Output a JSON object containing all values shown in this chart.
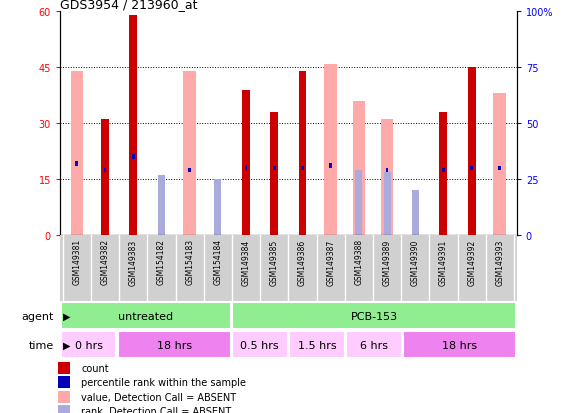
{
  "title": "GDS3954 / 213960_at",
  "samples": [
    "GSM149381",
    "GSM149382",
    "GSM149383",
    "GSM154182",
    "GSM154183",
    "GSM154184",
    "GSM149384",
    "GSM149385",
    "GSM149386",
    "GSM149387",
    "GSM149388",
    "GSM149389",
    "GSM149390",
    "GSM149391",
    "GSM149392",
    "GSM149393"
  ],
  "count_present": [
    null,
    31,
    59,
    null,
    null,
    null,
    39,
    33,
    44,
    null,
    null,
    null,
    null,
    33,
    45,
    null
  ],
  "count_absent": [
    44,
    null,
    null,
    null,
    44,
    null,
    null,
    null,
    null,
    46,
    36,
    31,
    null,
    null,
    null,
    38
  ],
  "rank_present": [
    32,
    29,
    35,
    null,
    29,
    null,
    30,
    30,
    30,
    31,
    null,
    29,
    null,
    29,
    30,
    30
  ],
  "rank_absent": [
    null,
    null,
    null,
    27,
    null,
    25,
    null,
    null,
    null,
    null,
    29,
    28,
    20,
    null,
    null,
    null
  ],
  "ylim_left": [
    0,
    60
  ],
  "ylim_right": [
    0,
    100
  ],
  "yticks_left": [
    0,
    15,
    30,
    45,
    60
  ],
  "yticks_right": [
    0,
    25,
    50,
    75,
    100
  ],
  "color_count_present": "#cc0000",
  "color_count_absent": "#ffaaaa",
  "color_rank_present": "#0000bb",
  "color_rank_absent": "#aaaadd",
  "agent_groups": [
    {
      "label": "untreated",
      "start": 0,
      "end": 6,
      "color": "#90ee90"
    },
    {
      "label": "PCB-153",
      "start": 6,
      "end": 16,
      "color": "#90ee90"
    }
  ],
  "time_groups": [
    {
      "label": "0 hrs",
      "start": 0,
      "end": 2,
      "color": "#ffccff"
    },
    {
      "label": "18 hrs",
      "start": 2,
      "end": 6,
      "color": "#ee82ee"
    },
    {
      "label": "0.5 hrs",
      "start": 6,
      "end": 8,
      "color": "#ffccff"
    },
    {
      "label": "1.5 hrs",
      "start": 8,
      "end": 10,
      "color": "#ffccff"
    },
    {
      "label": "6 hrs",
      "start": 10,
      "end": 12,
      "color": "#ffccff"
    },
    {
      "label": "18 hrs",
      "start": 12,
      "end": 16,
      "color": "#ee82ee"
    }
  ],
  "legend_items": [
    {
      "color": "#cc0000",
      "label": "count"
    },
    {
      "color": "#0000bb",
      "label": "percentile rank within the sample"
    },
    {
      "color": "#ffaaaa",
      "label": "value, Detection Call = ABSENT"
    },
    {
      "color": "#aaaadd",
      "label": "rank, Detection Call = ABSENT"
    }
  ]
}
